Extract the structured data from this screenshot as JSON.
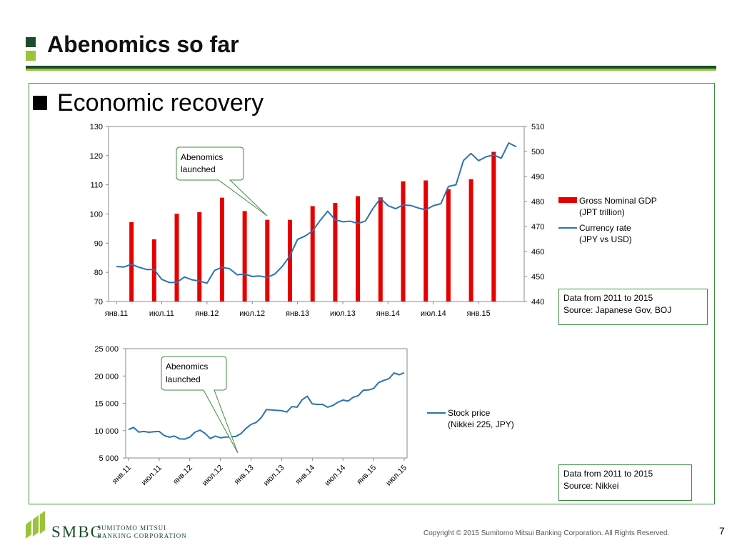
{
  "slide": {
    "title": "Abenomics so far",
    "section": "Economic recovery",
    "copyright": "Copyright © 2015 Sumitomo Mitsui Banking Corporation. All Rights Reserved.",
    "page_number": "7",
    "logo": {
      "name": "SMBC",
      "line1": "SUMITOMO MITSUI",
      "line2": "BANKING CORPORATION"
    },
    "colors": {
      "dark_green": "#1b4d2c",
      "light_green": "#9ac43c",
      "bar_red": "#e60000",
      "line_blue": "#2b73b3"
    }
  },
  "notes": {
    "gdp_note": {
      "line1": "Data from 2011 to 2015",
      "line2": "Source: Japanese Gov, BOJ"
    },
    "stock_note": {
      "line1": "Data from 2011 to 2015",
      "line2": "Source: Nikkei"
    }
  },
  "chart_data": [
    {
      "type": "bar+line",
      "title": "",
      "y_left": {
        "min": 70,
        "max": 130,
        "ticks": [
          "70",
          "80",
          "90",
          "100",
          "110",
          "120",
          "130"
        ]
      },
      "y_right": {
        "min": 440,
        "max": 510,
        "ticks": [
          "440",
          "450",
          "460",
          "470",
          "480",
          "490",
          "500",
          "510"
        ]
      },
      "x_labels": [
        "янв.11",
        "июл.11",
        "янв.12",
        "июл.12",
        "янв.13",
        "июл.13",
        "янв.14",
        "июл.14",
        "янв.15"
      ],
      "grid": false,
      "legend": "right",
      "series": [
        {
          "name_line1": "Gross Nominal GDP",
          "name_line2": "(JPT trillion)",
          "kind": "bar",
          "axis": "left",
          "points": [
            {
              "m": 2,
              "v": 97.2
            },
            {
              "m": 5,
              "v": 91.3
            },
            {
              "m": 8,
              "v": 100.1
            },
            {
              "m": 11,
              "v": 100.6
            },
            {
              "m": 14,
              "v": 105.6
            },
            {
              "m": 17,
              "v": 101.0
            },
            {
              "m": 20,
              "v": 98.0
            },
            {
              "m": 23,
              "v": 98.0
            },
            {
              "m": 26,
              "v": 102.7
            },
            {
              "m": 29,
              "v": 103.8
            },
            {
              "m": 32,
              "v": 106.1
            },
            {
              "m": 35,
              "v": 105.7
            },
            {
              "m": 38,
              "v": 111.2
            },
            {
              "m": 41,
              "v": 111.5
            },
            {
              "m": 44,
              "v": 108.5
            },
            {
              "m": 47,
              "v": 111.9
            },
            {
              "m": 50,
              "v": 121.3
            }
          ]
        },
        {
          "name_line1": "Currency rate",
          "name_line2": "(JPY vs USD)",
          "kind": "line",
          "axis": "right",
          "values": [
            454.0,
            453.8,
            454.9,
            453.7,
            452.8,
            452.8,
            448.9,
            447.6,
            447.6,
            449.8,
            448.7,
            448.2,
            447.3,
            452.4,
            453.7,
            453.1,
            450.7,
            451.0,
            450.0,
            450.2,
            449.6,
            451.0,
            454.1,
            458.3,
            464.8,
            466.2,
            468.2,
            472.4,
            476.1,
            472.7,
            471.9,
            472.1,
            471.2,
            472.2,
            477.2,
            481.2,
            478.3,
            477.1,
            478.6,
            478.4,
            477.4,
            476.7,
            478.3,
            479.1,
            486.0,
            486.7,
            496.4,
            499.2,
            496.3,
            497.9,
            498.6,
            497.3,
            503.4,
            501.9
          ]
        }
      ],
      "callout": {
        "line1": "Abenomics",
        "line2": "launched"
      }
    },
    {
      "type": "line",
      "title": "",
      "y": {
        "min": 5000,
        "max": 25000,
        "ticks": [
          "5 000",
          "10 000",
          "15 000",
          "20 000",
          "25 000"
        ]
      },
      "x_labels": [
        "янв.11",
        "июл.11",
        "янв.12",
        "июл.12",
        "янв.13",
        "июл.13",
        "янв.14",
        "июл.14",
        "янв.15",
        "июл.15"
      ],
      "grid": false,
      "legend": "right",
      "series": [
        {
          "name_line1": "Stock price",
          "name_line2": "(Nikkei 225, JPY)",
          "values": [
            10200,
            10600,
            9750,
            9850,
            9700,
            9800,
            9850,
            9100,
            8800,
            9000,
            8500,
            8450,
            8800,
            9700,
            10100,
            9500,
            8550,
            9000,
            8700,
            8800,
            8900,
            8930,
            9450,
            10400,
            11150,
            11500,
            12400,
            13850,
            13800,
            13700,
            13650,
            13400,
            14400,
            14300,
            15660,
            16300,
            14900,
            14800,
            14800,
            14300,
            14600,
            15200,
            15600,
            15400,
            16100,
            16400,
            17400,
            17450,
            17700,
            18800,
            19200,
            19500,
            20560,
            20230,
            20580
          ]
        }
      ],
      "callout": {
        "line1": "Abenomics",
        "line2": "launched"
      }
    }
  ]
}
